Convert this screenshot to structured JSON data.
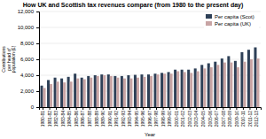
{
  "chart_data": {
    "type": "bar",
    "title": "How UK and Scottish tax revenues compare (from 1980 to the present day)",
    "xlabel": "Year",
    "ylabel": "Contributions\nper head of\npopulation (£)",
    "categories": [
      "1980-81",
      "1981-82",
      "1982-83",
      "1983-84",
      "1984-85",
      "1985-86",
      "1986-87",
      "1987-88",
      "1988-89",
      "1989-90",
      "1990-91",
      "1991-92",
      "1992-93",
      "1993-94",
      "1994-95",
      "1995-96",
      "1996-97",
      "1997-98",
      "1998-99",
      "1999-00",
      "2000-01",
      "2001-02",
      "2002-03",
      "2003-04",
      "2004-05",
      "2005-06",
      "2006-07",
      "2007-08",
      "2008-09",
      "2009-10",
      "2010-11",
      "2011-12",
      "2012-13"
    ],
    "series": [
      {
        "name": "Per capita (Scot)",
        "color": "#2e4057",
        "values": [
          2700,
          3400,
          3700,
          3600,
          3800,
          4200,
          3700,
          3900,
          4000,
          4100,
          4100,
          3900,
          3900,
          4000,
          4050,
          4100,
          4100,
          4200,
          4300,
          4400,
          4700,
          4700,
          4700,
          4850,
          5300,
          5500,
          5700,
          6100,
          6400,
          5800,
          6900,
          7200,
          7500
        ]
      },
      {
        "name": "Per capita (UK)",
        "color": "#c8a4a4",
        "values": [
          2400,
          2900,
          3200,
          3100,
          3200,
          3600,
          3500,
          3700,
          3900,
          4000,
          3900,
          3700,
          3600,
          3600,
          3700,
          3800,
          3900,
          4100,
          4200,
          4200,
          4500,
          4400,
          4300,
          4500,
          4850,
          5000,
          5300,
          5600,
          5600,
          5000,
          5700,
          6000,
          6100
        ]
      }
    ],
    "ylim": [
      0,
      12000
    ],
    "yticks": [
      0,
      {
        "value": 2000,
        "label": "2,000"
      },
      {
        "value": 4000,
        "label": "4,000"
      },
      {
        "value": 6000,
        "label": "6,000"
      },
      {
        "value": 8000,
        "label": "8,000"
      },
      {
        "value": 10000,
        "label": "10,000"
      },
      {
        "value": 12000,
        "label": "12,000"
      }
    ],
    "grid": true,
    "legend": "upper right"
  }
}
